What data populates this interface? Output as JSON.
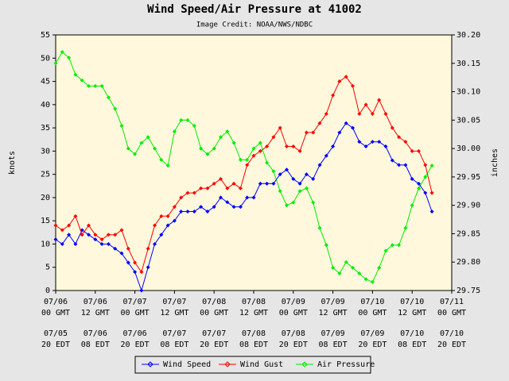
{
  "chart_data": {
    "type": "line",
    "title": "Wind Speed/Air Pressure at 41002",
    "subtitle": "Image Credit: NOAA/NWS/NDBC",
    "ylabel": "knots",
    "y2label": "inches",
    "x": [
      "07/06 00 GMT",
      "07/06 02 GMT",
      "07/06 04 GMT",
      "07/06 06 GMT",
      "07/06 08 GMT",
      "07/06 10 GMT",
      "07/06 12 GMT",
      "07/06 14 GMT",
      "07/06 16 GMT",
      "07/06 18 GMT",
      "07/06 20 GMT",
      "07/06 22 GMT",
      "07/07 00 GMT",
      "07/07 02 GMT",
      "07/07 04 GMT",
      "07/07 06 GMT",
      "07/07 08 GMT",
      "07/07 10 GMT",
      "07/07 12 GMT",
      "07/07 14 GMT",
      "07/07 16 GMT",
      "07/07 18 GMT",
      "07/07 20 GMT",
      "07/07 22 GMT",
      "07/08 00 GMT",
      "07/08 02 GMT",
      "07/08 04 GMT",
      "07/08 06 GMT",
      "07/08 08 GMT",
      "07/08 10 GMT",
      "07/08 12 GMT",
      "07/08 14 GMT",
      "07/08 16 GMT",
      "07/08 18 GMT",
      "07/08 20 GMT",
      "07/08 22 GMT",
      "07/09 00 GMT",
      "07/09 02 GMT",
      "07/09 04 GMT",
      "07/09 06 GMT",
      "07/09 08 GMT",
      "07/09 10 GMT",
      "07/09 12 GMT",
      "07/09 14 GMT",
      "07/09 16 GMT",
      "07/09 18 GMT",
      "07/09 20 GMT",
      "07/09 22 GMT",
      "07/10 00 GMT",
      "07/10 02 GMT",
      "07/10 04 GMT",
      "07/10 06 GMT",
      "07/10 08 GMT",
      "07/10 10 GMT",
      "07/10 12 GMT",
      "07/10 14 GMT",
      "07/10 16 GMT",
      "07/10 18 GMT"
    ],
    "series": [
      {
        "name": "Wind Speed",
        "color": "#0000ff",
        "axis": "y",
        "values": [
          11,
          10,
          12,
          10,
          13,
          12,
          11,
          10,
          10,
          9,
          8,
          6,
          4,
          0,
          5,
          10,
          12,
          14,
          15,
          17,
          17,
          17,
          18,
          17,
          18,
          20,
          19,
          18,
          18,
          20,
          20,
          23,
          23,
          23,
          25,
          26,
          24,
          23,
          25,
          24,
          27,
          29,
          31,
          34,
          36,
          35,
          32,
          31,
          32,
          32,
          31,
          28,
          27,
          27,
          24,
          23,
          21,
          17
        ]
      },
      {
        "name": "Wind Gust",
        "color": "#ff0000",
        "axis": "y",
        "values": [
          14,
          13,
          14,
          16,
          12,
          14,
          12,
          11,
          12,
          12,
          13,
          9,
          6,
          4,
          9,
          14,
          16,
          16,
          18,
          20,
          21,
          21,
          22,
          22,
          23,
          24,
          22,
          23,
          22,
          27,
          29,
          30,
          31,
          33,
          35,
          31,
          31,
          30,
          34,
          34,
          36,
          38,
          42,
          45,
          46,
          44,
          38,
          40,
          38,
          41,
          38,
          35,
          33,
          32,
          30,
          30,
          27,
          21
        ]
      },
      {
        "name": "Air Pressure",
        "color": "#00ee00",
        "axis": "y2",
        "values": [
          30.15,
          30.17,
          30.16,
          30.13,
          30.12,
          30.11,
          30.11,
          30.11,
          30.09,
          30.07,
          30.04,
          30.0,
          29.99,
          30.01,
          30.02,
          30.0,
          29.98,
          29.97,
          30.03,
          30.05,
          30.05,
          30.04,
          30.0,
          29.99,
          30.0,
          30.02,
          30.03,
          30.01,
          29.98,
          29.98,
          30.0,
          30.01,
          29.975,
          29.96,
          29.925,
          29.9,
          29.905,
          29.925,
          29.93,
          29.905,
          29.86,
          29.83,
          29.79,
          29.78,
          29.8,
          29.79,
          29.78,
          29.77,
          29.765,
          29.79,
          29.82,
          29.83,
          29.83,
          29.86,
          29.9,
          29.93,
          29.95,
          29.97
        ]
      }
    ],
    "xticks": [
      "07/06 00 GMT",
      "07/06 12 GMT",
      "07/07 00 GMT",
      "07/07 12 GMT",
      "07/08 00 GMT",
      "07/08 12 GMT",
      "07/09 00 GMT",
      "07/09 12 GMT",
      "07/10 00 GMT",
      "07/10 12 GMT",
      "07/11 00 GMT"
    ],
    "xticks_local": [
      "07/05 20 EDT",
      "07/06 08 EDT",
      "07/06 20 EDT",
      "07/07 08 EDT",
      "07/07 20 EDT",
      "07/08 08 EDT",
      "07/08 20 EDT",
      "07/09 08 EDT",
      "07/09 20 EDT",
      "07/10 08 EDT",
      "07/10 20 EDT"
    ],
    "ylim": [
      0,
      55
    ],
    "yticks": [
      0,
      5,
      10,
      15,
      20,
      25,
      30,
      35,
      40,
      45,
      50,
      55
    ],
    "y2lim": [
      29.75,
      30.2
    ],
    "y2ticks": [
      29.75,
      {
        "value": 29.8,
        "label": "29.80"
      },
      29.85,
      {
        "value": 29.9,
        "label": "29.90"
      },
      29.95,
      {
        "value": 30,
        "label": "30.00"
      },
      30.05,
      {
        "value": 30.1,
        "label": "30.10"
      },
      30.15,
      {
        "value": 30.2,
        "label": "30.20"
      }
    ],
    "grid": false,
    "legend": "bottom"
  }
}
